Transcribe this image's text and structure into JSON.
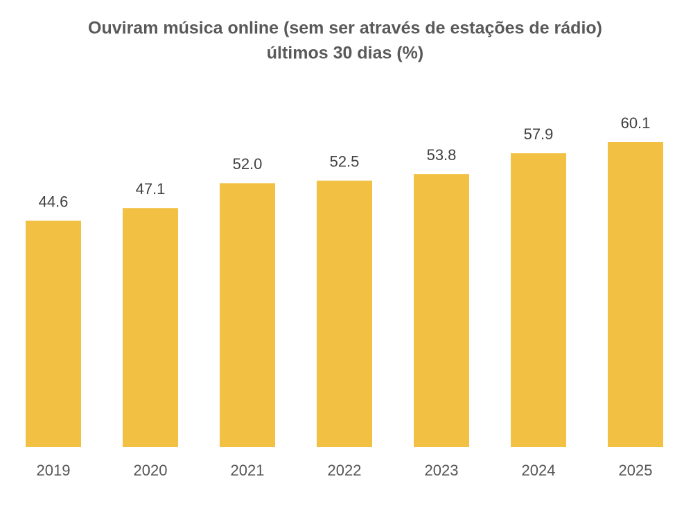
{
  "chart_data": {
    "type": "bar",
    "title": "Ouviram música online (sem ser através de estações de rádio)",
    "subtitle": "últimos 30 dias (%)",
    "categories": [
      "2019",
      "2020",
      "2021",
      "2022",
      "2023",
      "2024",
      "2025"
    ],
    "values": [
      44.6,
      47.1,
      52.0,
      52.5,
      53.8,
      57.9,
      60.1
    ],
    "value_labels": [
      "44.6",
      "47.1",
      "52.0",
      "52.5",
      "53.8",
      "57.9",
      "60.1"
    ],
    "color": "#f2c144"
  }
}
